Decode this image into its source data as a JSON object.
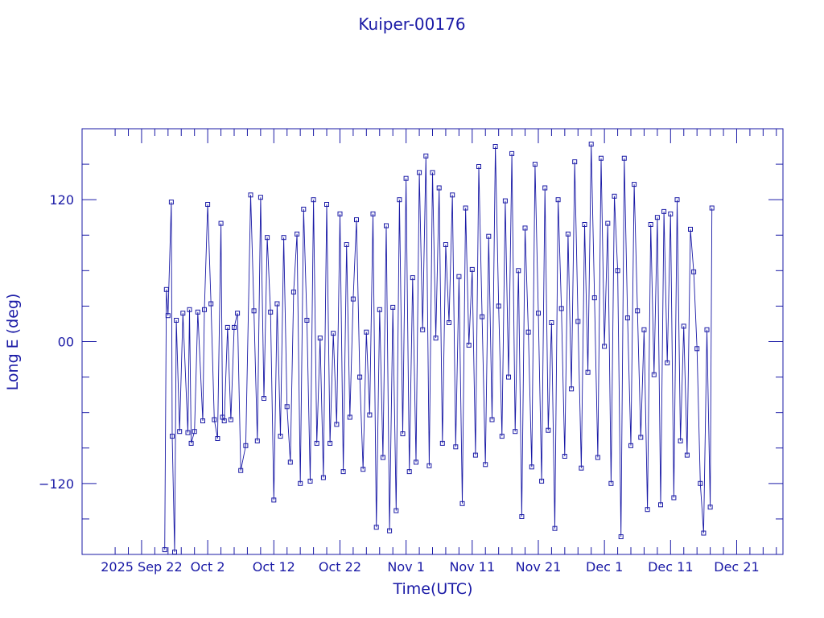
{
  "chart_data": {
    "type": "line",
    "title": "Kuiper-00176",
    "xlabel": "Time(UTC)",
    "ylabel": "Long E (deg)",
    "xlim": [
      "2025-09-13",
      "2025-12-28"
    ],
    "ylim": [
      -180,
      180
    ],
    "x_ticks": [
      {
        "date": "2025-09-22",
        "label": "2025 Sep 22"
      },
      {
        "date": "2025-10-02",
        "label": "Oct  2"
      },
      {
        "date": "2025-10-12",
        "label": "Oct 12"
      },
      {
        "date": "2025-10-22",
        "label": "Oct 22"
      },
      {
        "date": "2025-11-01",
        "label": "Nov  1"
      },
      {
        "date": "2025-11-11",
        "label": "Nov 11"
      },
      {
        "date": "2025-11-21",
        "label": "Nov 21"
      },
      {
        "date": "2025-12-01",
        "label": "Dec  1"
      },
      {
        "date": "2025-12-11",
        "label": "Dec 11"
      },
      {
        "date": "2025-12-21",
        "label": "Dec 21"
      }
    ],
    "y_ticks": [
      {
        "value": 120,
        "label": "120"
      },
      {
        "value": 0,
        "label": "00"
      },
      {
        "value": -120,
        "label": "−120"
      }
    ],
    "grid": false,
    "series": [
      {
        "marker": "square",
        "points": [
          [
            "2025-09-25T12:00",
            -176
          ],
          [
            "2025-09-25T18:00",
            44
          ],
          [
            "2025-09-26T00:00",
            22
          ],
          [
            "2025-09-26T12:00",
            118
          ],
          [
            "2025-09-26T15:00",
            -80
          ],
          [
            "2025-09-27T00:00",
            -178
          ],
          [
            "2025-09-27T06:00",
            18
          ],
          [
            "2025-09-27T18:00",
            -76
          ],
          [
            "2025-09-28T06:00",
            24
          ],
          [
            "2025-09-29T00:00",
            -77
          ],
          [
            "2025-09-29T06:00",
            27
          ],
          [
            "2025-09-29T12:00",
            -86
          ],
          [
            "2025-09-30T00:00",
            -76
          ],
          [
            "2025-09-30T12:00",
            25
          ],
          [
            "2025-10-01T06:00",
            -67
          ],
          [
            "2025-10-01T12:00",
            27
          ],
          [
            "2025-10-02T00:00",
            116
          ],
          [
            "2025-10-02T12:00",
            32
          ],
          [
            "2025-10-03T00:00",
            -66
          ],
          [
            "2025-10-03T12:00",
            -82
          ],
          [
            "2025-10-04T00:00",
            100
          ],
          [
            "2025-10-04T06:00",
            -64
          ],
          [
            "2025-10-04T12:00",
            -67
          ],
          [
            "2025-10-05T00:00",
            12
          ],
          [
            "2025-10-05T12:00",
            -66
          ],
          [
            "2025-10-06T00:00",
            12
          ],
          [
            "2025-10-06T12:00",
            24
          ],
          [
            "2025-10-07T00:00",
            -109
          ],
          [
            "2025-10-07T18:00",
            -88
          ],
          [
            "2025-10-08T12:00",
            124
          ],
          [
            "2025-10-09T00:00",
            26
          ],
          [
            "2025-10-09T12:00",
            -84
          ],
          [
            "2025-10-10T00:00",
            122
          ],
          [
            "2025-10-10T12:00",
            -48
          ],
          [
            "2025-10-11T00:00",
            88
          ],
          [
            "2025-10-11T12:00",
            25
          ],
          [
            "2025-10-12T00:00",
            -134
          ],
          [
            "2025-10-12T12:00",
            32
          ],
          [
            "2025-10-13T00:00",
            -80
          ],
          [
            "2025-10-13T12:00",
            88
          ],
          [
            "2025-10-14T00:00",
            -55
          ],
          [
            "2025-10-14T12:00",
            -102
          ],
          [
            "2025-10-15T00:00",
            42
          ],
          [
            "2025-10-15T12:00",
            91
          ],
          [
            "2025-10-16T00:00",
            -120
          ],
          [
            "2025-10-16T12:00",
            112
          ],
          [
            "2025-10-17T00:00",
            18
          ],
          [
            "2025-10-17T12:00",
            -118
          ],
          [
            "2025-10-18T00:00",
            120
          ],
          [
            "2025-10-18T12:00",
            -86
          ],
          [
            "2025-10-19T00:00",
            3
          ],
          [
            "2025-10-19T12:00",
            -115
          ],
          [
            "2025-10-20T00:00",
            116
          ],
          [
            "2025-10-20T12:00",
            -86
          ],
          [
            "2025-10-21T00:00",
            7
          ],
          [
            "2025-10-21T12:00",
            -70
          ],
          [
            "2025-10-22T00:00",
            108
          ],
          [
            "2025-10-22T12:00",
            -110
          ],
          [
            "2025-10-23T00:00",
            82
          ],
          [
            "2025-10-23T12:00",
            -64
          ],
          [
            "2025-10-24T00:00",
            36
          ],
          [
            "2025-10-24T12:00",
            103
          ],
          [
            "2025-10-25T00:00",
            -30
          ],
          [
            "2025-10-25T12:00",
            -108
          ],
          [
            "2025-10-26T00:00",
            8
          ],
          [
            "2025-10-26T12:00",
            -62
          ],
          [
            "2025-10-27T00:00",
            108
          ],
          [
            "2025-10-27T12:00",
            -157
          ],
          [
            "2025-10-28T00:00",
            27
          ],
          [
            "2025-10-28T12:00",
            -98
          ],
          [
            "2025-10-29T00:00",
            98
          ],
          [
            "2025-10-29T12:00",
            -160
          ],
          [
            "2025-10-30T00:00",
            29
          ],
          [
            "2025-10-30T12:00",
            -143
          ],
          [
            "2025-10-31T00:00",
            120
          ],
          [
            "2025-10-31T12:00",
            -78
          ],
          [
            "2025-11-01T00:00",
            138
          ],
          [
            "2025-11-01T12:00",
            -110
          ],
          [
            "2025-11-02T00:00",
            54
          ],
          [
            "2025-11-02T12:00",
            -102
          ],
          [
            "2025-11-03T00:00",
            143
          ],
          [
            "2025-11-03T12:00",
            10
          ],
          [
            "2025-11-04T00:00",
            157
          ],
          [
            "2025-11-04T12:00",
            -105
          ],
          [
            "2025-11-05T00:00",
            143
          ],
          [
            "2025-11-05T12:00",
            3
          ],
          [
            "2025-11-06T00:00",
            130
          ],
          [
            "2025-11-06T12:00",
            -86
          ],
          [
            "2025-11-07T00:00",
            82
          ],
          [
            "2025-11-07T12:00",
            16
          ],
          [
            "2025-11-08T00:00",
            124
          ],
          [
            "2025-11-08T12:00",
            -89
          ],
          [
            "2025-11-09T00:00",
            55
          ],
          [
            "2025-11-09T12:00",
            -137
          ],
          [
            "2025-11-10T00:00",
            113
          ],
          [
            "2025-11-10T12:00",
            -3
          ],
          [
            "2025-11-11T00:00",
            61
          ],
          [
            "2025-11-11T12:00",
            -96
          ],
          [
            "2025-11-12T00:00",
            148
          ],
          [
            "2025-11-12T12:00",
            21
          ],
          [
            "2025-11-13T00:00",
            -104
          ],
          [
            "2025-11-13T12:00",
            89
          ],
          [
            "2025-11-14T00:00",
            -66
          ],
          [
            "2025-11-14T12:00",
            165
          ],
          [
            "2025-11-15T00:00",
            30
          ],
          [
            "2025-11-15T12:00",
            -80
          ],
          [
            "2025-11-16T00:00",
            119
          ],
          [
            "2025-11-16T12:00",
            -30
          ],
          [
            "2025-11-17T00:00",
            159
          ],
          [
            "2025-11-17T12:00",
            -76
          ],
          [
            "2025-11-18T00:00",
            60
          ],
          [
            "2025-11-18T12:00",
            -148
          ],
          [
            "2025-11-19T00:00",
            96
          ],
          [
            "2025-11-19T12:00",
            8
          ],
          [
            "2025-11-20T00:00",
            -106
          ],
          [
            "2025-11-20T12:00",
            150
          ],
          [
            "2025-11-21T00:00",
            24
          ],
          [
            "2025-11-21T12:00",
            -118
          ],
          [
            "2025-11-22T00:00",
            130
          ],
          [
            "2025-11-22T12:00",
            -75
          ],
          [
            "2025-11-23T00:00",
            16
          ],
          [
            "2025-11-23T12:00",
            -158
          ],
          [
            "2025-11-24T00:00",
            120
          ],
          [
            "2025-11-24T12:00",
            28
          ],
          [
            "2025-11-25T00:00",
            -97
          ],
          [
            "2025-11-25T12:00",
            91
          ],
          [
            "2025-11-26T00:00",
            -40
          ],
          [
            "2025-11-26T12:00",
            152
          ],
          [
            "2025-11-27T00:00",
            17
          ],
          [
            "2025-11-27T12:00",
            -107
          ],
          [
            "2025-11-28T00:00",
            99
          ],
          [
            "2025-11-28T12:00",
            -26
          ],
          [
            "2025-11-29T00:00",
            167
          ],
          [
            "2025-11-29T12:00",
            37
          ],
          [
            "2025-11-30T00:00",
            -98
          ],
          [
            "2025-11-30T12:00",
            155
          ],
          [
            "2025-12-01T00:00",
            -4
          ],
          [
            "2025-12-01T12:00",
            100
          ],
          [
            "2025-12-02T00:00",
            -120
          ],
          [
            "2025-12-02T12:00",
            123
          ],
          [
            "2025-12-03T00:00",
            60
          ],
          [
            "2025-12-03T12:00",
            -165
          ],
          [
            "2025-12-04T00:00",
            155
          ],
          [
            "2025-12-04T12:00",
            20
          ],
          [
            "2025-12-05T00:00",
            -88
          ],
          [
            "2025-12-05T12:00",
            133
          ],
          [
            "2025-12-06T00:00",
            26
          ],
          [
            "2025-12-06T12:00",
            -81
          ],
          [
            "2025-12-07T00:00",
            10
          ],
          [
            "2025-12-07T12:00",
            -142
          ],
          [
            "2025-12-08T00:00",
            99
          ],
          [
            "2025-12-08T12:00",
            -28
          ],
          [
            "2025-12-09T00:00",
            105
          ],
          [
            "2025-12-09T12:00",
            -138
          ],
          [
            "2025-12-10T00:00",
            110
          ],
          [
            "2025-12-10T12:00",
            -18
          ],
          [
            "2025-12-11T00:00",
            108
          ],
          [
            "2025-12-11T12:00",
            -132
          ],
          [
            "2025-12-12T00:00",
            120
          ],
          [
            "2025-12-12T12:00",
            -84
          ],
          [
            "2025-12-13T00:00",
            13
          ],
          [
            "2025-12-13T12:00",
            -96
          ],
          [
            "2025-12-14T00:00",
            95
          ],
          [
            "2025-12-14T12:00",
            59
          ],
          [
            "2025-12-15T00:00",
            -6
          ],
          [
            "2025-12-15T12:00",
            -120
          ],
          [
            "2025-12-16T00:00",
            -162
          ],
          [
            "2025-12-16T12:00",
            10
          ],
          [
            "2025-12-17T00:00",
            -140
          ],
          [
            "2025-12-17T06:00",
            113
          ]
        ]
      }
    ]
  }
}
